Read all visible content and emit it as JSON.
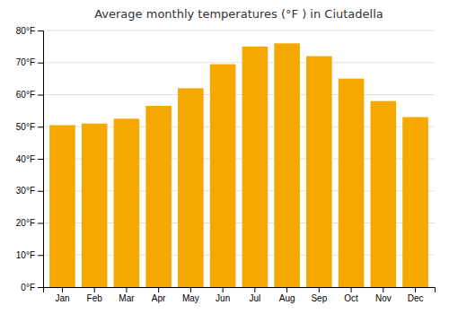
{
  "chart_data": {
    "type": "bar",
    "title": "Average monthly temperatures (°F ) in Ciutadella",
    "categories": [
      "Jan",
      "Feb",
      "Mar",
      "Apr",
      "May",
      "Jun",
      "Jul",
      "Aug",
      "Sep",
      "Oct",
      "Nov",
      "Dec"
    ],
    "values": [
      50.5,
      51.0,
      52.5,
      56.5,
      62.0,
      69.5,
      75.0,
      76.0,
      72.0,
      65.0,
      58.0,
      53.0
    ],
    "color": "#F5A800",
    "ylim": [
      0,
      80
    ],
    "yticks": [
      {
        "value": 0,
        "label": "0°F"
      },
      {
        "value": 10,
        "label": "10°F"
      },
      {
        "value": 20,
        "label": "20°F"
      },
      {
        "value": 30,
        "label": "30°F"
      },
      {
        "value": 40,
        "label": "40°F"
      },
      {
        "value": 50,
        "label": "50°F"
      },
      {
        "value": 60,
        "label": "60°F"
      },
      {
        "value": 70,
        "label": "70°F"
      },
      {
        "value": 80,
        "label": "80°F"
      }
    ],
    "grid": true
  }
}
